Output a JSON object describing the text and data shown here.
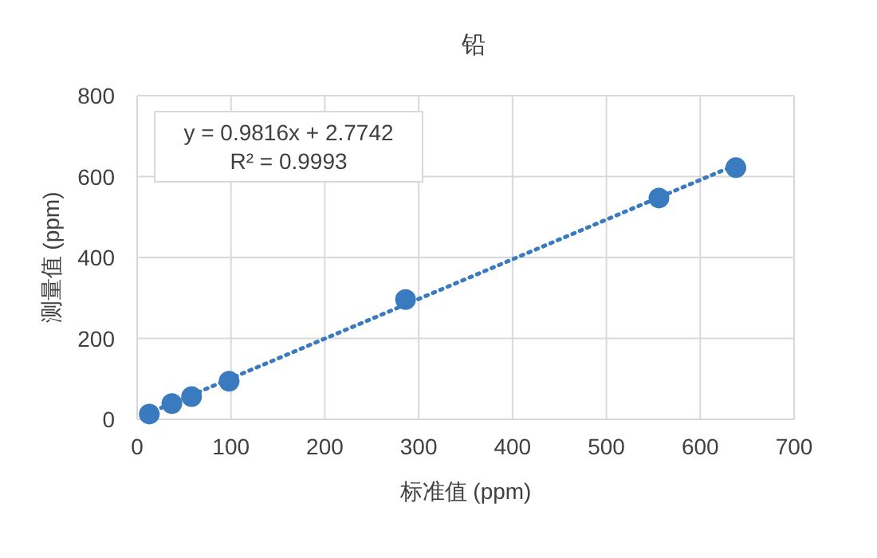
{
  "chart_data": {
    "type": "scatter",
    "title": "铅",
    "xlabel": "标准值 (ppm)",
    "ylabel": "测量值 (ppm)",
    "annotations": [
      "y = 0.9816x + 2.7742",
      "R² = 0.9993"
    ],
    "xlim": [
      0,
      700
    ],
    "ylim": [
      0,
      800
    ],
    "xticks": [
      0,
      100,
      200,
      300,
      400,
      500,
      600,
      700
    ],
    "yticks": [
      0,
      200,
      400,
      600,
      800
    ],
    "grid": true,
    "series": [
      {
        "marker": "circle",
        "color": "#3a7bbf",
        "x": [
          13,
          37,
          58,
          98,
          286,
          556,
          638
        ],
        "values": [
          13,
          39,
          56,
          94,
          296,
          547,
          622
        ]
      },
      {
        "type": "line",
        "color": "#3a7bbf",
        "line_style": "dotted",
        "x": [
          10,
          638
        ],
        "values": [
          13,
          629
        ]
      }
    ]
  }
}
